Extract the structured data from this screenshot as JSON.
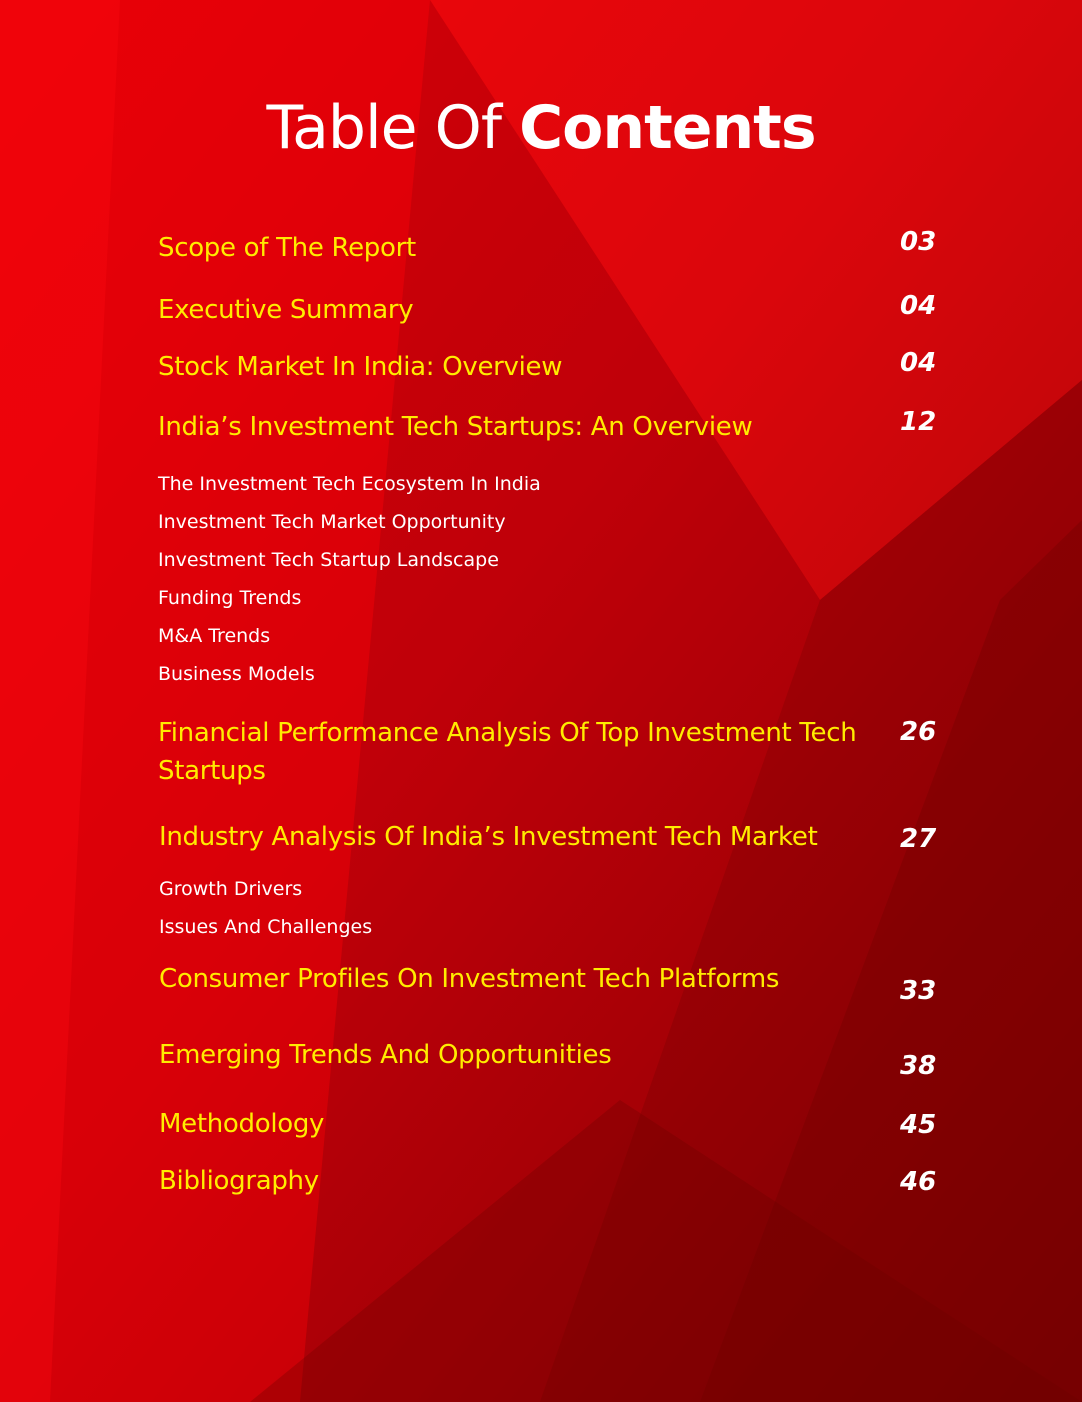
{
  "title": {
    "light": "Table Of ",
    "bold": "Contents"
  },
  "toc": {
    "scope": {
      "label": "Scope of The Report",
      "page": "03"
    },
    "executive": {
      "label": "Executive Summary",
      "page": "04"
    },
    "stock_market": {
      "label": "Stock Market In India: Overview",
      "page": "04"
    },
    "startups_overview": {
      "label": "India’s Investment Tech Startups: An Overview",
      "page": "12",
      "subitems": [
        "The Investment Tech Ecosystem In India",
        "Investment Tech Market Opportunity",
        "Investment Tech Startup Landscape",
        "Funding Trends",
        "M&A Trends",
        "Business Models"
      ]
    },
    "financial": {
      "label": "Financial Performance Analysis Of Top Investment Tech Startups",
      "page": "26"
    },
    "industry": {
      "label": "Industry Analysis Of India’s Investment Tech Market",
      "page": "27",
      "subitems": [
        "Growth Drivers",
        "Issues And Challenges"
      ]
    },
    "consumer": {
      "label": "Consumer Profiles On Investment Tech Platforms",
      "page": "33"
    },
    "emerging": {
      "label": "Emerging Trends And Opportunities",
      "page": "38"
    },
    "methodology": {
      "label": "Methodology",
      "page": "45"
    },
    "bibliography": {
      "label": "Bibliography",
      "page": "46"
    }
  },
  "colors": {
    "background": "#c90005",
    "heading_text": "#ffec00",
    "body_text": "#ffffff"
  }
}
